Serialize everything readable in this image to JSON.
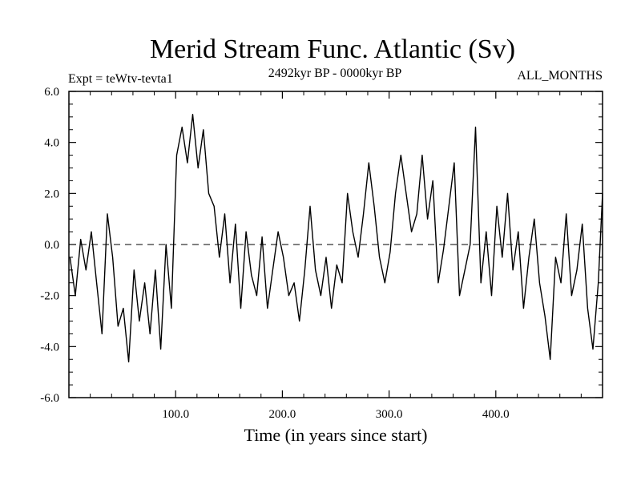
{
  "chart_data": {
    "type": "line",
    "title": "Merid Stream Func. Atlantic (Sv)",
    "subtitle_left": "Expt = teWtv-tevta1",
    "subtitle_center": "2492kyr BP - 0000kyr BP",
    "subtitle_right": "ALL_MONTHS",
    "xlabel": "Time (in years since start)",
    "ylabel": "",
    "xlim": [
      0,
      500
    ],
    "ylim": [
      -6,
      6
    ],
    "x_ticks": [
      100,
      200,
      300,
      400
    ],
    "x_tick_labels": [
      "100.0",
      "200.0",
      "300.0",
      "400.0"
    ],
    "y_ticks": [
      6,
      4,
      2,
      0,
      -2,
      -4,
      -6
    ],
    "y_tick_labels": [
      "6.0",
      "4.0",
      "2.0",
      "0.0",
      "-2.0",
      "-4.0",
      "-6.0"
    ],
    "zero_line": "dashed",
    "grid": false,
    "series": [
      {
        "name": "Merid Stream Func. Atlantic",
        "x": [
          1,
          6,
          11,
          16,
          21,
          26,
          31,
          36,
          41,
          46,
          51,
          56,
          61,
          66,
          71,
          76,
          81,
          86,
          91,
          96,
          101,
          106,
          111,
          116,
          121,
          126,
          131,
          136,
          141,
          146,
          151,
          156,
          161,
          166,
          171,
          176,
          181,
          186,
          191,
          196,
          201,
          206,
          211,
          216,
          221,
          226,
          231,
          236,
          241,
          246,
          251,
          256,
          261,
          266,
          271,
          276,
          281,
          286,
          291,
          296,
          301,
          306,
          311,
          316,
          321,
          326,
          331,
          336,
          341,
          346,
          351,
          356,
          361,
          366,
          371,
          376,
          381,
          386,
          391,
          396,
          401,
          406,
          411,
          416,
          421,
          426,
          431,
          436,
          441,
          446,
          451,
          456,
          461,
          466,
          471,
          476,
          481,
          486,
          491,
          496,
          500
        ],
        "values": [
          -0.5,
          -2.0,
          0.2,
          -1.0,
          0.5,
          -1.5,
          -3.5,
          1.2,
          -0.5,
          -3.2,
          -2.5,
          -4.6,
          -1.0,
          -3.0,
          -1.5,
          -3.5,
          -1.0,
          -4.1,
          0.0,
          -2.5,
          3.5,
          4.6,
          3.2,
          5.1,
          3.0,
          4.5,
          2.0,
          1.5,
          -0.5,
          1.2,
          -1.5,
          0.8,
          -2.5,
          0.5,
          -1.2,
          -2.0,
          0.3,
          -2.5,
          -1.0,
          0.5,
          -0.5,
          -2.0,
          -1.5,
          -3.0,
          -1.0,
          1.5,
          -1.0,
          -2.0,
          -0.5,
          -2.5,
          -0.8,
          -1.5,
          2.0,
          0.5,
          -0.5,
          1.2,
          3.2,
          1.5,
          -0.5,
          -1.5,
          -0.3,
          2.0,
          3.5,
          2.0,
          0.5,
          1.2,
          3.5,
          1.0,
          2.5,
          -1.5,
          -0.2,
          1.5,
          3.2,
          -2.0,
          -1.0,
          0.0,
          4.6,
          -1.5,
          0.5,
          -2.0,
          1.5,
          -0.5,
          2.0,
          -1.0,
          0.5,
          -2.5,
          -0.5,
          1.0,
          -1.5,
          -2.8,
          -4.5,
          -0.5,
          -1.5,
          1.2,
          -2.0,
          -1.0,
          0.8,
          -2.5,
          -4.1,
          -1.5,
          2.0
        ]
      }
    ]
  }
}
